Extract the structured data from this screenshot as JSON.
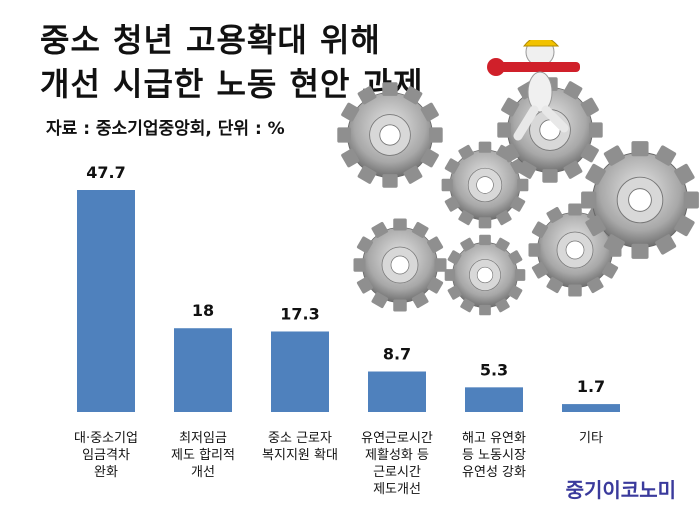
{
  "title_line1": "중소 청년 고용확대 위해",
  "title_line2": "개선 시급한 노동 현안 과제",
  "source": "자료 : 중소기업중앙회, 단위 : %",
  "brand": "중기이코노미",
  "colors": {
    "bar": "#4f81bd",
    "gear": "#9a9a9a",
    "wrench": "#d0202a",
    "helmet": "#f2c200"
  },
  "chart_data": {
    "type": "bar",
    "categories": [
      [
        "대·중소기업",
        "임금격차",
        "완화"
      ],
      [
        "최저임금",
        "제도 합리적",
        "개선"
      ],
      [
        "중소 근로자",
        "복지지원 확대"
      ],
      [
        "유연근로시간",
        "제활성화 등",
        "근로시간",
        "제도개선"
      ],
      [
        "해고 유연화",
        "등 노동시장",
        "유연성 강화"
      ],
      [
        "기타"
      ]
    ],
    "values": [
      47.7,
      18,
      17.3,
      8.7,
      5.3,
      1.7
    ],
    "value_labels": [
      "47.7",
      "18",
      "17.3",
      "8.7",
      "5.3",
      "1.7"
    ],
    "title": "",
    "xlabel": "",
    "ylabel": "",
    "ylim": [
      0,
      50
    ],
    "grid": false
  }
}
